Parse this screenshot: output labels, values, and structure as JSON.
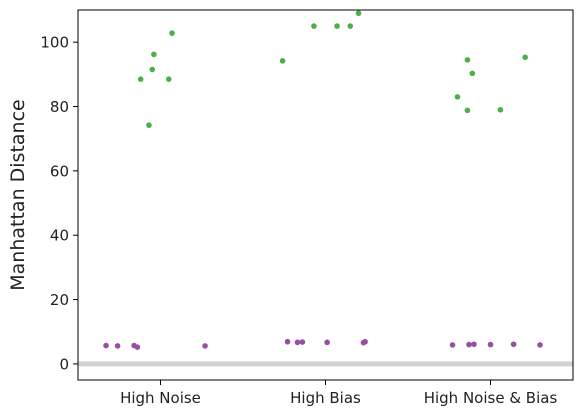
{
  "chart_data": {
    "type": "scatter",
    "title": "",
    "xlabel": "",
    "ylabel": "Manhattan Distance",
    "categories": [
      "High Noise",
      "High Bias",
      "High Noise & Bias"
    ],
    "ylim": [
      -5,
      110
    ],
    "yticks": [
      0,
      20,
      40,
      60,
      80,
      100
    ],
    "grid": false,
    "legend": "none",
    "reference_line": {
      "y": 0,
      "color": "#d3d3d3"
    },
    "series": [
      {
        "color": "#4daf4a",
        "points": [
          {
            "cat": 0,
            "jitter": -0.12,
            "y": 88.5
          },
          {
            "cat": 0,
            "jitter": -0.07,
            "y": 74.2
          },
          {
            "cat": 0,
            "jitter": -0.04,
            "y": 96.2
          },
          {
            "cat": 0,
            "jitter": -0.05,
            "y": 91.5
          },
          {
            "cat": 0,
            "jitter": 0.05,
            "y": 88.5
          },
          {
            "cat": 0,
            "jitter": 0.07,
            "y": 102.8
          },
          {
            "cat": 1,
            "jitter": -0.26,
            "y": 94.2
          },
          {
            "cat": 1,
            "jitter": -0.07,
            "y": 105.0
          },
          {
            "cat": 1,
            "jitter": 0.07,
            "y": 105.0
          },
          {
            "cat": 1,
            "jitter": 0.15,
            "y": 105.0
          },
          {
            "cat": 1,
            "jitter": 0.2,
            "y": 109.0
          },
          {
            "cat": 2,
            "jitter": -0.2,
            "y": 83.0
          },
          {
            "cat": 2,
            "jitter": -0.14,
            "y": 78.8
          },
          {
            "cat": 2,
            "jitter": -0.14,
            "y": 94.5
          },
          {
            "cat": 2,
            "jitter": -0.11,
            "y": 90.3
          },
          {
            "cat": 2,
            "jitter": 0.06,
            "y": 79.0
          },
          {
            "cat": 2,
            "jitter": 0.21,
            "y": 95.3
          }
        ]
      },
      {
        "color": "#984ea3",
        "points": [
          {
            "cat": 0,
            "jitter": -0.33,
            "y": 5.7
          },
          {
            "cat": 0,
            "jitter": -0.26,
            "y": 5.6
          },
          {
            "cat": 0,
            "jitter": -0.16,
            "y": 5.7
          },
          {
            "cat": 0,
            "jitter": -0.14,
            "y": 5.2
          },
          {
            "cat": 0,
            "jitter": 0.27,
            "y": 5.6
          },
          {
            "cat": 1,
            "jitter": -0.23,
            "y": 6.9
          },
          {
            "cat": 1,
            "jitter": -0.17,
            "y": 6.7
          },
          {
            "cat": 1,
            "jitter": -0.14,
            "y": 6.8
          },
          {
            "cat": 1,
            "jitter": 0.01,
            "y": 6.7
          },
          {
            "cat": 1,
            "jitter": 0.23,
            "y": 6.6
          },
          {
            "cat": 1,
            "jitter": 0.24,
            "y": 6.9
          },
          {
            "cat": 2,
            "jitter": -0.23,
            "y": 5.9
          },
          {
            "cat": 2,
            "jitter": -0.13,
            "y": 6.0
          },
          {
            "cat": 2,
            "jitter": -0.1,
            "y": 6.1
          },
          {
            "cat": 2,
            "jitter": 0.0,
            "y": 6.0
          },
          {
            "cat": 2,
            "jitter": 0.14,
            "y": 6.1
          },
          {
            "cat": 2,
            "jitter": 0.3,
            "y": 5.9
          }
        ]
      }
    ]
  }
}
